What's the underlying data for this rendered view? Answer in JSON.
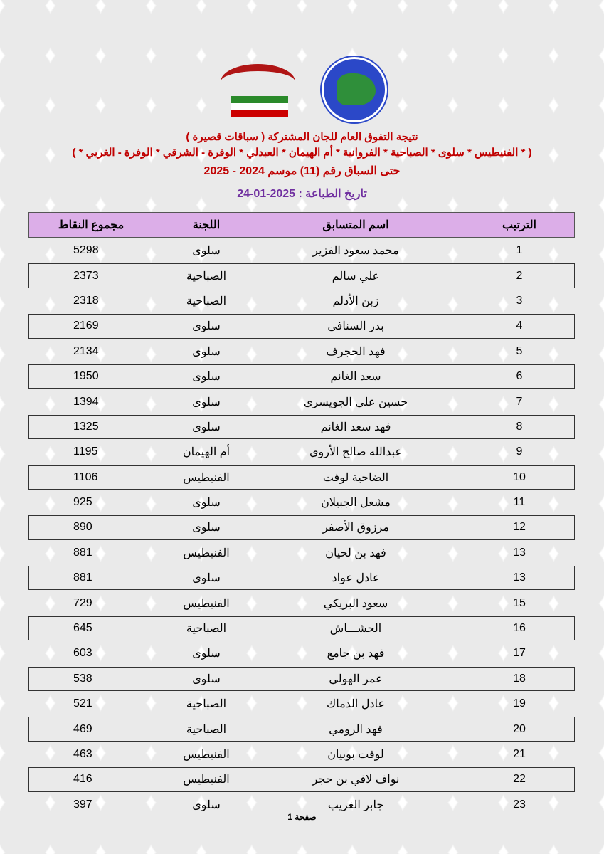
{
  "logos": {
    "club": "النادي الكويتي لسباق الحمام الزاجل - Kuwait Racing Pigeon Club",
    "federation": "الاتحاد الكويتي لسباق حمام الزاجل - KUWAIT FEDERATION FOR RACING PIGEON"
  },
  "header": {
    "title": "نتيجة التفوق العام للجان المشتركة ( سباقات قصيرة )",
    "committees": "( * الفنيطيس * سلوى * الصباحية * الفروانية * أم الهيمان * العبدلي * الوفرة - الشرقي * الوفرة - الغربي * )",
    "race": "حتى السباق رقم (11) موسم 2024 - 2025",
    "print_date": "تاريخ الطباعة : 2025-01-24"
  },
  "columns": {
    "rank": "الترتيب",
    "name": "اسم المتسابق",
    "committee": "اللجنة",
    "points": "مجموع النقاط"
  },
  "rows": [
    {
      "rank": "1",
      "name": "محمد سعود الفزير",
      "committee": "سلوى",
      "points": "5298"
    },
    {
      "rank": "2",
      "name": "علي سالم",
      "committee": "الصباحية",
      "points": "2373"
    },
    {
      "rank": "3",
      "name": "زبن الأدلم",
      "committee": "الصباحية",
      "points": "2318"
    },
    {
      "rank": "4",
      "name": "بدر السنافي",
      "committee": "سلوى",
      "points": "2169"
    },
    {
      "rank": "5",
      "name": "فهد الحجرف",
      "committee": "سلوى",
      "points": "2134"
    },
    {
      "rank": "6",
      "name": "سعد الغانم",
      "committee": "سلوى",
      "points": "1950"
    },
    {
      "rank": "7",
      "name": "حسين علي الجويسري",
      "committee": "سلوى",
      "points": "1394"
    },
    {
      "rank": "8",
      "name": "فهد سعد الغانم",
      "committee": "سلوى",
      "points": "1325"
    },
    {
      "rank": "9",
      "name": "عبدالله صالح الأروي",
      "committee": "أم الهيمان",
      "points": "1195"
    },
    {
      "rank": "10",
      "name": "الضاحية لوفت",
      "committee": "الفنيطيس",
      "points": "1106"
    },
    {
      "rank": "11",
      "name": "مشعل الجبيلان",
      "committee": "سلوى",
      "points": "925"
    },
    {
      "rank": "12",
      "name": "مرزوق الأصفر",
      "committee": "سلوى",
      "points": "890"
    },
    {
      "rank": "13",
      "name": "فهد بن لحيان",
      "committee": "الفنيطيس",
      "points": "881"
    },
    {
      "rank": "13",
      "name": "عادل عواد",
      "committee": "سلوى",
      "points": "881"
    },
    {
      "rank": "15",
      "name": "سعود البريكي",
      "committee": "الفنيطيس",
      "points": "729"
    },
    {
      "rank": "16",
      "name": "الحشـــاش",
      "committee": "الصباحية",
      "points": "645"
    },
    {
      "rank": "17",
      "name": "فهد بن جامع",
      "committee": "سلوى",
      "points": "603"
    },
    {
      "rank": "18",
      "name": "عمر الهولي",
      "committee": "سلوى",
      "points": "538"
    },
    {
      "rank": "19",
      "name": "عادل الدماك",
      "committee": "الصباحية",
      "points": "521"
    },
    {
      "rank": "20",
      "name": "فهد الرومي",
      "committee": "الصباحية",
      "points": "469"
    },
    {
      "rank": "21",
      "name": "لوفت بوبيان",
      "committee": "الفنيطيس",
      "points": "463"
    },
    {
      "rank": "22",
      "name": "نواف لافي بن حجر",
      "committee": "الفنيطيس",
      "points": "416"
    },
    {
      "rank": "23",
      "name": "جابر الغريب",
      "committee": "سلوى",
      "points": "397"
    }
  ],
  "footer": {
    "page": "صفحة 1"
  },
  "colors": {
    "title": "#c00000",
    "date": "#7030a0",
    "header_bg": "#dcaee8"
  }
}
